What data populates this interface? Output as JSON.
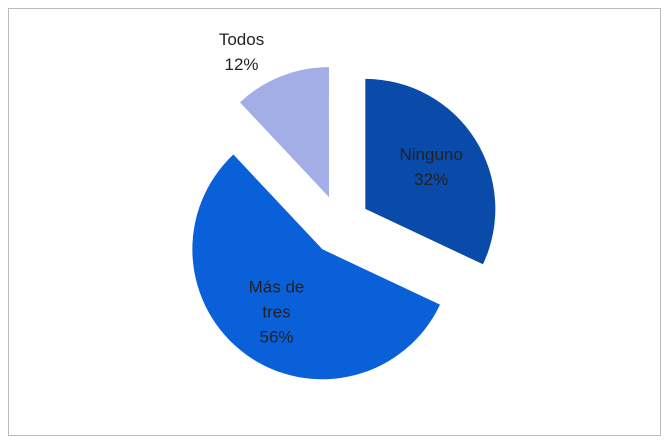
{
  "chart_data": {
    "type": "pie",
    "categories": [
      "Ninguno",
      "Más de tres",
      "Todos"
    ],
    "values": [
      32,
      56,
      12
    ],
    "value_labels": [
      "32%",
      "56%",
      "12%"
    ],
    "colors": [
      "#0a4aa8",
      "#0a60d8",
      "#a4aee6"
    ]
  }
}
